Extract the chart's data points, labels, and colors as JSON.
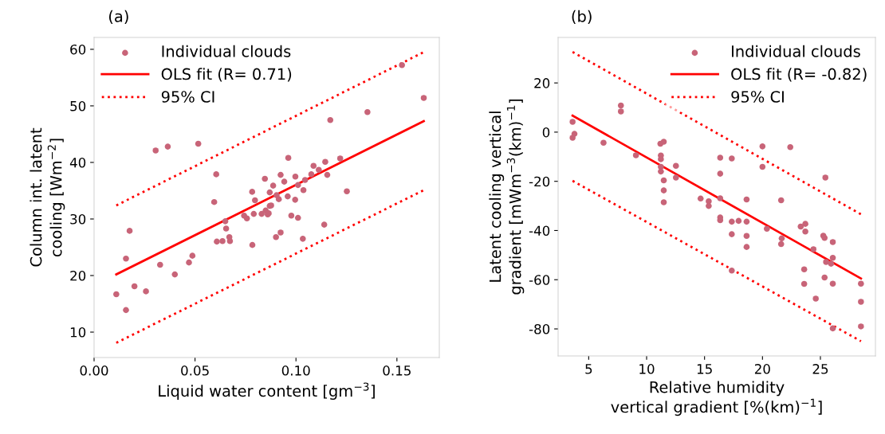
{
  "chart_data": [
    {
      "type": "scatter",
      "title": "(a)",
      "xlabel": "Liquid water content [gm$^{−3}$]",
      "ylabel": "Column int. latent\ncooling [Wm$^{−2}$]",
      "xlim": [
        0.0,
        0.171
      ],
      "ylim": [
        5.5,
        62.1
      ],
      "xticks": [
        {
          "value": 0,
          "label": "0.00"
        },
        {
          "value": 0.05,
          "label": "0.05"
        },
        {
          "value": 0.1,
          "label": "0.10"
        },
        {
          "value": 0.15,
          "label": "0.15"
        }
      ],
      "yticks": [
        10,
        20,
        30,
        40,
        50,
        60
      ],
      "grid": false,
      "legend": "top left",
      "series": [
        {
          "name": "Individual clouds",
          "marker": "circle",
          "color": "#c86478",
          "x": [
            0.011,
            0.0158,
            0.0158,
            0.0176,
            0.02,
            0.0257,
            0.0305,
            0.0327,
            0.0365,
            0.04,
            0.047,
            0.0487,
            0.0516,
            0.0595,
            0.0605,
            0.0608,
            0.0636,
            0.065,
            0.0654,
            0.067,
            0.0673,
            0.0743,
            0.0757,
            0.0783,
            0.0784,
            0.0791,
            0.0797,
            0.083,
            0.0846,
            0.085,
            0.086,
            0.0865,
            0.087,
            0.087,
            0.0877,
            0.0887,
            0.0901,
            0.0904,
            0.0915,
            0.0924,
            0.0924,
            0.0942,
            0.0959,
            0.0962,
            0.0977,
            0.0996,
            0.0997,
            0.101,
            0.101,
            0.1034,
            0.1037,
            0.1045,
            0.1076,
            0.1087,
            0.1113,
            0.114,
            0.1145,
            0.1155,
            0.117,
            0.1219,
            0.1252,
            0.1354,
            0.1525,
            0.1633
          ],
          "values": [
            16.7,
            13.9,
            23.0,
            27.9,
            18.1,
            17.2,
            42.1,
            21.9,
            42.8,
            20.2,
            22.3,
            23.5,
            43.3,
            33.0,
            37.9,
            26.0,
            26.1,
            29.6,
            28.3,
            26.8,
            26.1,
            30.6,
            30.1,
            34.8,
            25.4,
            30.9,
            33.3,
            30.9,
            37.1,
            31.5,
            30.8,
            31.0,
            32.3,
            34.7,
            32.4,
            35.9,
            26.8,
            34.2,
            33.5,
            37.8,
            27.6,
            36.6,
            34.0,
            40.8,
            30.6,
            33.4,
            37.5,
            30.2,
            36.0,
            26.5,
            35.1,
            36.9,
            37.9,
            39.4,
            38.7,
            29.0,
            40.1,
            37.8,
            47.5,
            40.7,
            34.9,
            48.9,
            57.2,
            51.4
          ]
        },
        {
          "name": "OLS fit (R= 0.71)",
          "type": "line",
          "marker": "none",
          "line_style": "solid",
          "color": "#ff0000",
          "x": [
            0.011,
            0.1633
          ],
          "values": [
            20.2,
            47.3
          ]
        },
        {
          "name": "95% CI",
          "type": "line",
          "marker": "none",
          "line_style": "dotted",
          "color": "#ff0000",
          "x": [
            0.011,
            0.1633
          ],
          "values": [
            32.4,
            59.5
          ]
        },
        {
          "type": "line",
          "marker": "none",
          "line_style": "dotted",
          "color": "#ff0000",
          "x": [
            0.011,
            0.1633
          ],
          "values": [
            8.1,
            35.1
          ]
        }
      ]
    },
    {
      "type": "scatter",
      "title": "(b)",
      "xlabel": "Relative humidity\nvertical gradient [%(km)$^{−1}$]",
      "ylabel": "Latent cooling vertical\ngradient [mWm$^{−3}$(km)$^{−1}$]",
      "xlim": [
        2.36,
        29.75
      ],
      "ylim": [
        -91,
        38.5
      ],
      "xticks": [
        5,
        10,
        15,
        20,
        25
      ],
      "yticks": [
        -80,
        -60,
        -40,
        -20,
        0,
        20
      ],
      "grid": false,
      "legend": "top right",
      "series": [
        {
          "name": "Individual clouds",
          "marker": "circle",
          "color": "#c86478",
          "x": [
            3.61,
            3.77,
            3.61,
            6.28,
            7.78,
            7.78,
            9.08,
            11.19,
            11.48,
            11.23,
            11.23,
            11.23,
            11.23,
            11.48,
            11.48,
            11.48,
            12.53,
            12.53,
            14.66,
            15.36,
            15.36,
            16.35,
            16.35,
            16.35,
            16.35,
            16.35,
            17.35,
            17.35,
            17.35,
            17.35,
            17.94,
            18.63,
            18.63,
            18.63,
            18.63,
            20.0,
            20.0,
            20.38,
            21.61,
            21.66,
            21.61,
            22.4,
            23.3,
            23.7,
            23.7,
            23.6,
            23.6,
            24.4,
            24.6,
            25.43,
            25.25,
            25.36,
            25.36,
            25.49,
            25.92,
            26.07,
            26.07,
            26.07,
            26.07,
            28.5,
            28.5,
            28.5
          ],
          "values": [
            4.2,
            -0.7,
            -2.3,
            -4.3,
            10.8,
            8.4,
            -9.4,
            -4.7,
            -3.9,
            -9.5,
            -11.0,
            -14.1,
            -16.0,
            -19.6,
            -23.7,
            -28.5,
            -13.7,
            -18.5,
            -27.0,
            -28.1,
            -30.0,
            -10.4,
            -16.9,
            -26.9,
            -34.7,
            -35.8,
            -10.7,
            -36.4,
            -41.5,
            -56.3,
            -36.1,
            -27.4,
            -36.4,
            -42.2,
            -46.7,
            -5.8,
            -14.1,
            -39.3,
            -27.7,
            -43.2,
            -45.5,
            -6.1,
            -38.4,
            -37.3,
            -40.4,
            -55.8,
            -61.7,
            -47.6,
            -67.7,
            -18.5,
            -42.1,
            -43.0,
            -59.1,
            -52.8,
            -53.5,
            -44.7,
            -51.1,
            -61.6,
            -79.8,
            -61.6,
            -69.0,
            -79.0
          ]
        },
        {
          "name": "OLS fit (R= -0.82)",
          "type": "line",
          "marker": "none",
          "line_style": "solid",
          "color": "#ff0000",
          "x": [
            3.61,
            28.5
          ],
          "values": [
            6.7,
            -59.5
          ]
        },
        {
          "name": "95% CI",
          "type": "line",
          "marker": "none",
          "line_style": "dotted",
          "color": "#ff0000",
          "x": [
            3.61,
            28.5
          ],
          "values": [
            32.6,
            -33.4
          ]
        },
        {
          "type": "line",
          "marker": "none",
          "line_style": "dotted",
          "color": "#ff0000",
          "x": [
            3.61,
            28.5
          ],
          "values": [
            -19.8,
            -85.0
          ]
        }
      ]
    }
  ]
}
